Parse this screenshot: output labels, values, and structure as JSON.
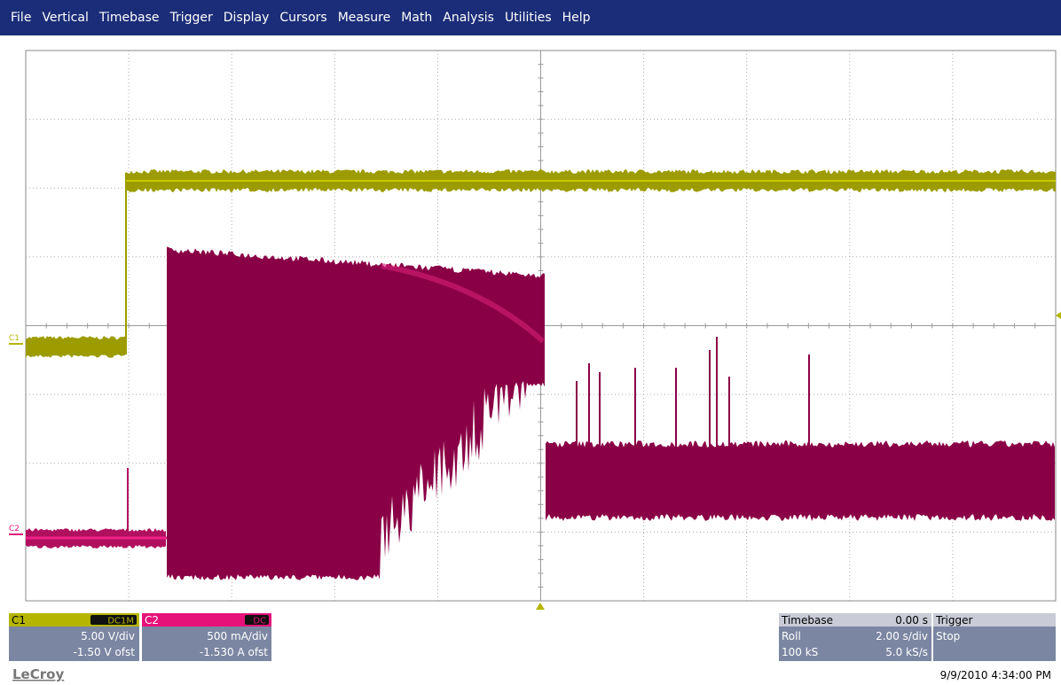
{
  "menu": [
    "File",
    "Vertical",
    "Timebase",
    "Trigger",
    "Display",
    "Cursors",
    "Measure",
    "Math",
    "Analysis",
    "Utilities",
    "Help"
  ],
  "channels": [
    {
      "label": "C1",
      "coupling": "DC1M",
      "scale": "5.00 V/div",
      "offset": "-1.50 V ofst"
    },
    {
      "label": "C2",
      "coupling": "DC",
      "scale": "500 mA/div",
      "offset": "-1.530 A ofst"
    }
  ],
  "timebase": {
    "label": "Timebase",
    "delay": "0.00 s",
    "mode": "Roll",
    "scale": "2.00 s/div",
    "samples": "100 kS",
    "rate": "5.0 kS/s"
  },
  "trigger": {
    "label": "Trigger",
    "state": "Stop"
  },
  "brand": "LeCroy",
  "timestamp": "9/9/2010 4:34:00 PM"
}
